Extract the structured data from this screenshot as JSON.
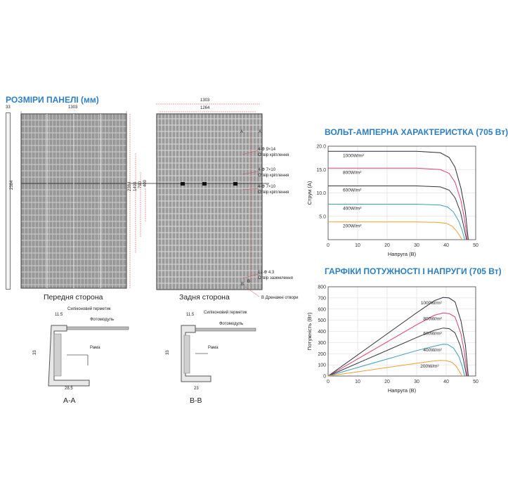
{
  "panel_section": {
    "title": "РОЗМІРИ ПАНЕЛІ (мм)",
    "dims": {
      "side_thickness": "33",
      "width_outer": "1303",
      "width_inner": "1264",
      "height": "2384",
      "h1": "1400",
      "h2": "790",
      "h3": "400"
    },
    "front_label": "Передня сторона",
    "back_label": "Задня сторона",
    "callouts": {
      "section_a_label": "A",
      "section_a_arrow": "A",
      "hole1_dim": "4-Ф 9×14",
      "hole1_name": "Отвір кріплення",
      "hole2_dim": "4-Ф 7×10",
      "hole2_name": "Отвір кріплення",
      "hole3_dim": "4-Ф 7×10",
      "hole3_name": "Отвір кріплення",
      "ground_dim": "12-Ф 4.3",
      "ground_name": "Отвір заземлення",
      "drain": "В Дренажні отвори",
      "section_b_label": "B",
      "section_b_arrow": "B"
    }
  },
  "profiles": [
    {
      "name": "A-A",
      "sealant": "Силіконовий герметик",
      "module": "Фотомодуль",
      "frame": "Рама",
      "top": "11.5",
      "height": "33",
      "width": "28.5"
    },
    {
      "name": "B-B",
      "sealant": "Силіконовий герметик",
      "module": "Фотомодуль",
      "frame": "Рама",
      "top": "11.5",
      "height": "33",
      "width": "23"
    }
  ],
  "chart_data": [
    {
      "type": "line",
      "title": "ВОЛЬТ-АМПЕРНА ХАРАКТЕРИСТКА (705 Вт)",
      "xlabel": "Напруга (В)",
      "ylabel": "Струм (A)",
      "xlim": [
        0,
        50
      ],
      "ylim": [
        0,
        20
      ],
      "xticks": [
        "0",
        "10",
        "20",
        "30",
        "40",
        "50"
      ],
      "yticks": [
        "5.0",
        "10.0",
        "15.0",
        "20.0"
      ],
      "series": [
        {
          "name": "1000W/m²",
          "color": "#2a2a3a",
          "x": [
            0,
            30,
            38,
            41,
            43,
            45,
            46.5,
            47.5
          ],
          "y": [
            18.9,
            18.9,
            18.6,
            17.6,
            15.5,
            11,
            6,
            0
          ]
        },
        {
          "name": "800W/m²",
          "color": "#d9406e",
          "x": [
            0,
            30,
            38,
            41,
            43,
            45,
            46.2,
            47.2
          ],
          "y": [
            15.3,
            15.3,
            15.0,
            14.2,
            12.3,
            8.4,
            4.5,
            0
          ]
        },
        {
          "name": "600W/m²",
          "color": "#333340",
          "x": [
            0,
            30,
            38,
            41,
            43,
            44.8,
            45.9,
            46.9
          ],
          "y": [
            11.5,
            11.5,
            11.3,
            10.6,
            9.0,
            6.0,
            3.0,
            0
          ]
        },
        {
          "name": "400W/m²",
          "color": "#39a0b8",
          "x": [
            0,
            30,
            38,
            40.5,
            42.5,
            44.3,
            45.4,
            46.3
          ],
          "y": [
            7.6,
            7.6,
            7.4,
            7.0,
            5.9,
            3.9,
            2.0,
            0
          ]
        },
        {
          "name": "200W/m²",
          "color": "#f0a030",
          "x": [
            0,
            30,
            37,
            40,
            42,
            43.5,
            44.5,
            45.4
          ],
          "y": [
            3.8,
            3.8,
            3.7,
            3.5,
            2.9,
            1.9,
            0.9,
            0
          ]
        }
      ]
    },
    {
      "type": "line",
      "title": "ГАРФІКИ ПОТУЖНОСТІ І НАПРУГИ (705 Вт)",
      "xlabel": "Напруга (В)",
      "ylabel": "Потужність (Вт)",
      "xlim": [
        0,
        50
      ],
      "ylim": [
        0,
        800
      ],
      "xticks": [
        "0",
        "10",
        "20",
        "30",
        "40",
        "50"
      ],
      "yticks": [
        "0",
        "100",
        "200",
        "300",
        "400",
        "500",
        "600",
        "700",
        "800"
      ],
      "series": [
        {
          "name": "1000W/m²",
          "color": "#2a2a3a",
          "x": [
            0,
            10,
            20,
            30,
            36,
            39,
            41,
            43,
            45,
            46.5,
            47.5
          ],
          "y": [
            0,
            189,
            378,
            567,
            675,
            705,
            700,
            665,
            495,
            280,
            0
          ]
        },
        {
          "name": "800W/m²",
          "color": "#d9406e",
          "x": [
            0,
            10,
            20,
            30,
            36,
            39,
            41,
            43,
            45,
            46.2,
            47.2
          ],
          "y": [
            0,
            153,
            306,
            459,
            545,
            565,
            560,
            530,
            380,
            210,
            0
          ]
        },
        {
          "name": "600W/m²",
          "color": "#333340",
          "x": [
            0,
            10,
            20,
            30,
            36,
            39,
            41,
            43,
            44.8,
            45.9,
            46.9
          ],
          "y": [
            0,
            115,
            230,
            345,
            410,
            430,
            425,
            387,
            270,
            140,
            0
          ]
        },
        {
          "name": "400W/m²",
          "color": "#39a0b8",
          "x": [
            0,
            10,
            20,
            30,
            36,
            39,
            40.5,
            42.5,
            44.3,
            45.4,
            46.3
          ],
          "y": [
            0,
            76,
            152,
            228,
            268,
            285,
            283,
            250,
            175,
            90,
            0
          ]
        },
        {
          "name": "200W/m²",
          "color": "#f0a030",
          "x": [
            0,
            10,
            20,
            30,
            35,
            38,
            40,
            42,
            43.5,
            44.5,
            45.4
          ],
          "y": [
            0,
            38,
            76,
            114,
            132,
            140,
            138,
            122,
            85,
            40,
            0
          ]
        }
      ]
    }
  ]
}
